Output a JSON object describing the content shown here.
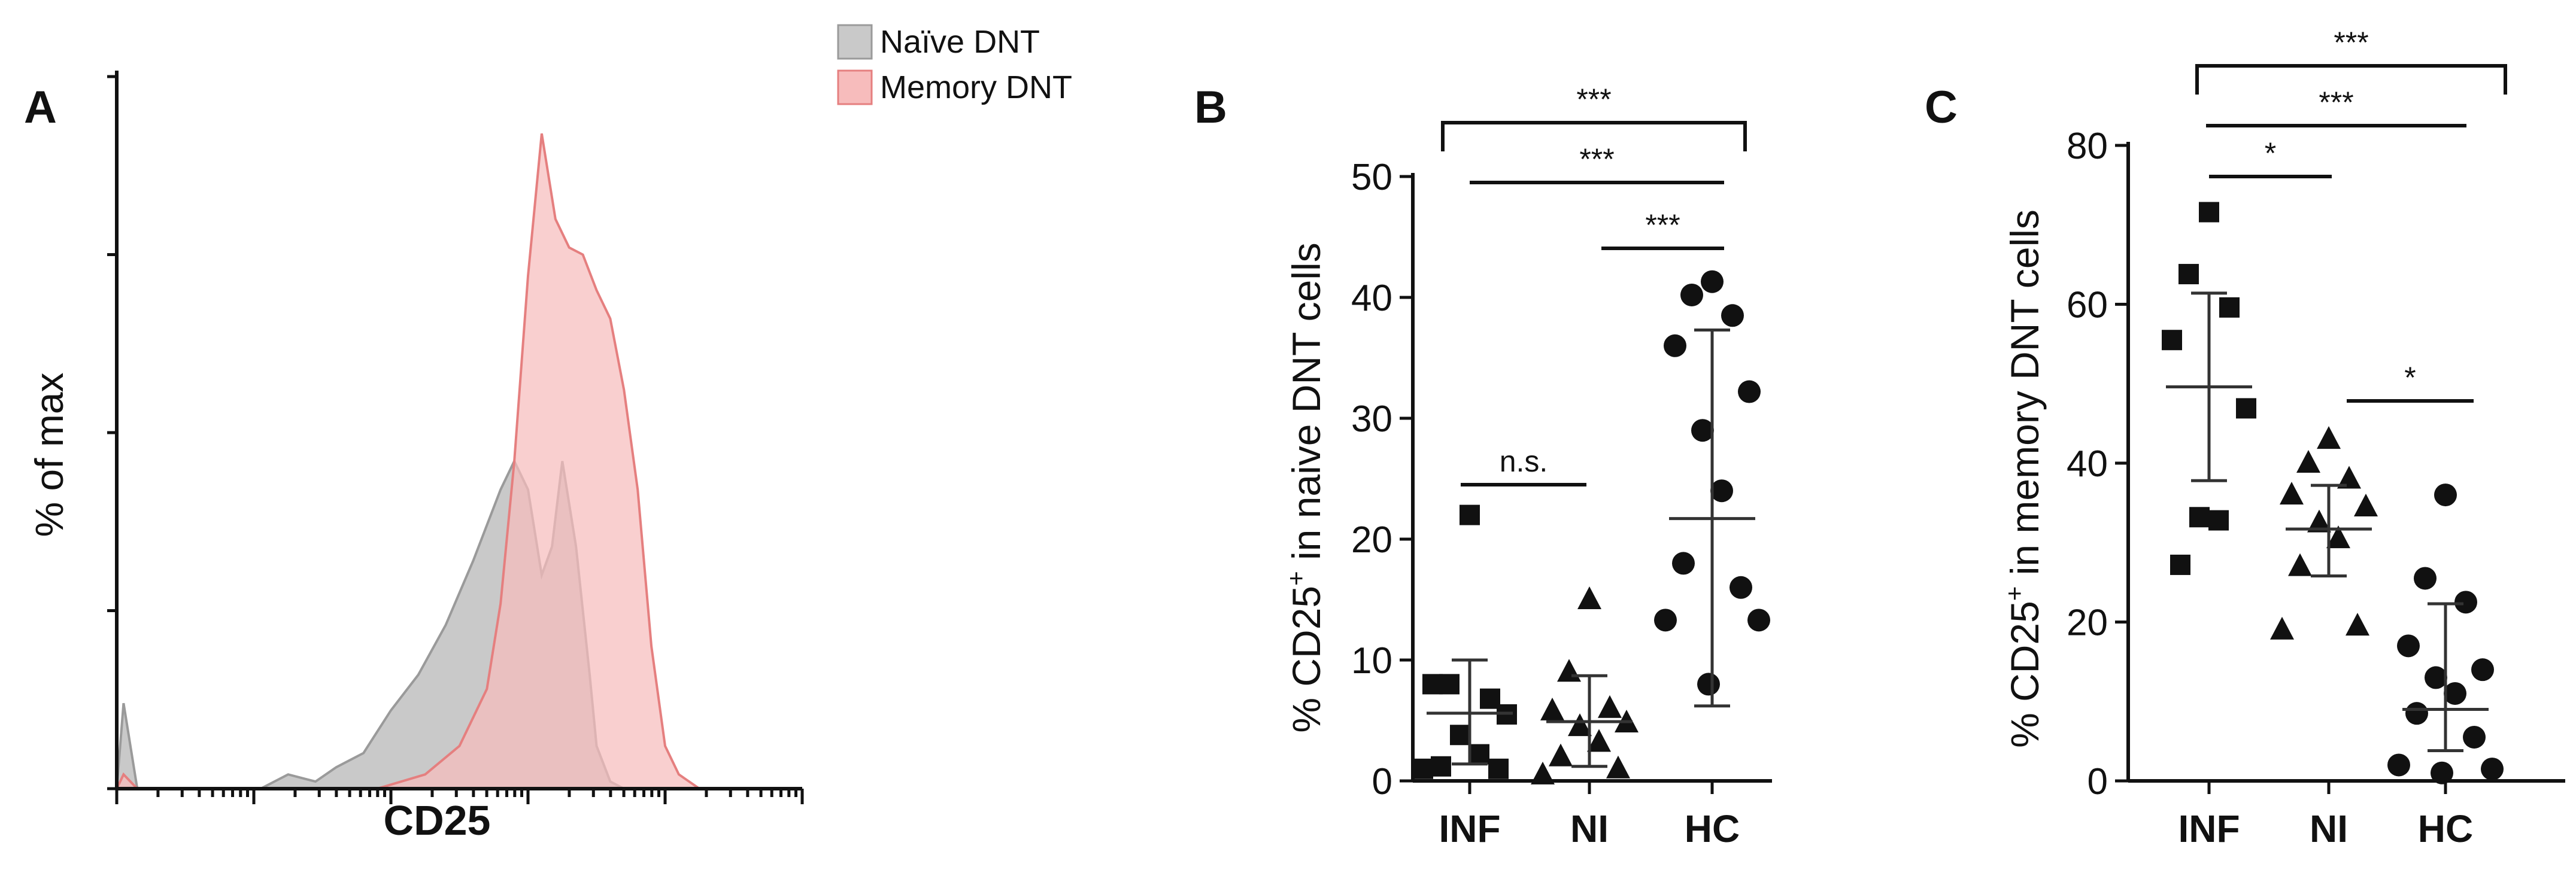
{
  "chart_data": [
    {
      "panel": "A",
      "type": "area",
      "xlabel": "CD25",
      "ylabel": "% of max",
      "xscale": "log",
      "series": [
        {
          "name": "Naïve  DNT",
          "color": "#c9c9c9",
          "stroke": "#9a9a9a",
          "x": [
            0.0,
            0.01,
            0.03,
            0.21,
            0.25,
            0.29,
            0.32,
            0.36,
            0.4,
            0.44,
            0.48,
            0.52,
            0.56,
            0.58,
            0.6,
            0.62,
            0.635,
            0.65,
            0.67,
            0.69,
            0.7,
            0.72,
            0.74,
            0.76,
            0.78,
            0.8
          ],
          "y": [
            0.0,
            0.12,
            0.0,
            0.0,
            0.02,
            0.01,
            0.03,
            0.05,
            0.11,
            0.16,
            0.23,
            0.32,
            0.42,
            0.46,
            0.42,
            0.3,
            0.34,
            0.46,
            0.34,
            0.16,
            0.06,
            0.01,
            0.0,
            0.0,
            0.0,
            0.0
          ]
        },
        {
          "name": "Memory DNT",
          "color": "#f7bcbc",
          "stroke": "#e57f7f",
          "x": [
            0.0,
            0.01,
            0.03,
            0.38,
            0.45,
            0.5,
            0.54,
            0.56,
            0.58,
            0.6,
            0.62,
            0.64,
            0.66,
            0.68,
            0.7,
            0.72,
            0.74,
            0.76,
            0.78,
            0.8,
            0.82,
            0.85
          ],
          "y": [
            0.0,
            0.02,
            0.0,
            0.0,
            0.02,
            0.06,
            0.14,
            0.26,
            0.46,
            0.72,
            0.92,
            0.8,
            0.76,
            0.75,
            0.7,
            0.66,
            0.56,
            0.42,
            0.2,
            0.06,
            0.02,
            0.0
          ]
        }
      ],
      "legend_placement": "top-right"
    },
    {
      "panel": "B",
      "type": "scatter",
      "ylabel_main": "% CD25",
      "ylabel_sup": "+",
      "ylabel_rest": " in naive DNT cells",
      "categories": [
        "INF",
        "NI",
        "HC"
      ],
      "ylim": [
        0,
        50
      ],
      "yticks": [
        0,
        10,
        20,
        30,
        40,
        50
      ],
      "groups": [
        {
          "category": "INF",
          "marker": "square",
          "mean": 5.6,
          "sd_low": 1.4,
          "sd_high": 10.0,
          "values": [
            22.0,
            8.0,
            6.8,
            8.0,
            5.5,
            3.8,
            2.2,
            1.2,
            1.0,
            1.0
          ]
        },
        {
          "category": "NI",
          "marker": "triangle",
          "mean": 4.9,
          "sd_low": 1.2,
          "sd_high": 8.7,
          "values": [
            15.0,
            9.0,
            6.0,
            5.8,
            4.8,
            4.5,
            3.2,
            2.0,
            1.0,
            0.5
          ]
        },
        {
          "category": "HC",
          "marker": "circle",
          "mean": 21.7,
          "sd_low": 6.2,
          "sd_high": 37.3,
          "values": [
            41.3,
            40.2,
            38.5,
            36.0,
            32.2,
            29.0,
            24.0,
            18.0,
            16.0,
            13.3,
            13.3,
            8.0
          ]
        }
      ],
      "significance": [
        {
          "from": "INF",
          "to": "NI",
          "label": "n.s."
        },
        {
          "from": "NI",
          "to": "HC",
          "label": "***"
        },
        {
          "from": "INF",
          "to": "HC",
          "label": "***"
        },
        {
          "from": "INF",
          "to": "HC",
          "label": "***",
          "bracket": true
        }
      ]
    },
    {
      "panel": "C",
      "type": "scatter",
      "ylabel_main": "% CD25",
      "ylabel_sup": "+",
      "ylabel_rest": " in memory DNT cells",
      "categories": [
        "INF",
        "NI",
        "HC"
      ],
      "ylim": [
        0,
        80
      ],
      "yticks": [
        0,
        20,
        40,
        60,
        80
      ],
      "groups": [
        {
          "category": "INF",
          "marker": "square",
          "mean": 49.6,
          "sd_low": 37.8,
          "sd_high": 61.4,
          "values": [
            71.6,
            63.8,
            59.6,
            55.5,
            46.9,
            33.2,
            32.8,
            27.2
          ]
        },
        {
          "category": "NI",
          "marker": "triangle",
          "mean": 31.7,
          "sd_low": 25.8,
          "sd_high": 37.2,
          "values": [
            43.0,
            40.0,
            38.0,
            36.0,
            34.5,
            32.5,
            30.5,
            27.0,
            19.5,
            19.0
          ]
        },
        {
          "category": "HC",
          "marker": "circle",
          "mean": 9.0,
          "sd_low": 3.8,
          "sd_high": 22.3,
          "values": [
            36.0,
            25.5,
            22.5,
            17.0,
            14.0,
            13.0,
            11.0,
            8.5,
            5.5,
            2.0,
            1.5,
            1.0
          ]
        }
      ],
      "significance": [
        {
          "from": "INF",
          "to": "NI",
          "label": "*"
        },
        {
          "from": "NI",
          "to": "HC",
          "label": "*"
        },
        {
          "from": "INF",
          "to": "HC",
          "label": "***"
        },
        {
          "from": "INF",
          "to": "HC",
          "label": "***",
          "bracket": true
        }
      ]
    }
  ]
}
